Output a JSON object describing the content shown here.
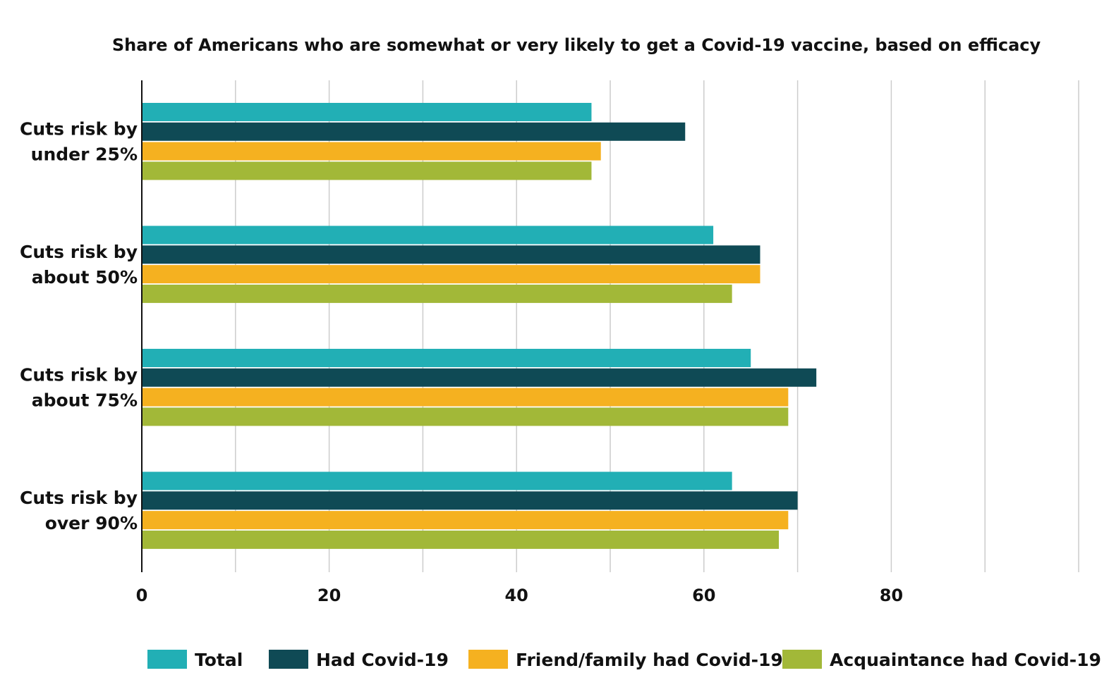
{
  "chart_data": {
    "type": "bar",
    "orientation": "horizontal",
    "title": "Share of Americans who are somewhat or very likely to get a Covid-19 vaccine, based on efficacy",
    "categories": [
      [
        "Cuts risk by",
        "under 25%"
      ],
      [
        "Cuts risk by",
        "about 50%"
      ],
      [
        "Cuts risk by",
        "about 75%"
      ],
      [
        "Cuts risk by",
        "over 90%"
      ]
    ],
    "series": [
      {
        "name": "Total",
        "color": "#22AFB5",
        "values": [
          48,
          61,
          65,
          63
        ]
      },
      {
        "name": "Had Covid-19",
        "color": "#0F4A55",
        "values": [
          58,
          66,
          72,
          70
        ]
      },
      {
        "name": "Friend/family had Covid-19",
        "color": "#F5B120",
        "values": [
          49,
          66,
          69,
          69
        ]
      },
      {
        "name": "Acquaintance had Covid-19",
        "color": "#A2B838",
        "values": [
          48,
          63,
          69,
          68
        ]
      }
    ],
    "xlim": [
      0,
      100
    ],
    "xticks": [
      0,
      20,
      40,
      60,
      80
    ],
    "gridlines": [
      10,
      20,
      30,
      40,
      50,
      60,
      70,
      80,
      90,
      100
    ],
    "grid": true,
    "legend": "bottom"
  }
}
